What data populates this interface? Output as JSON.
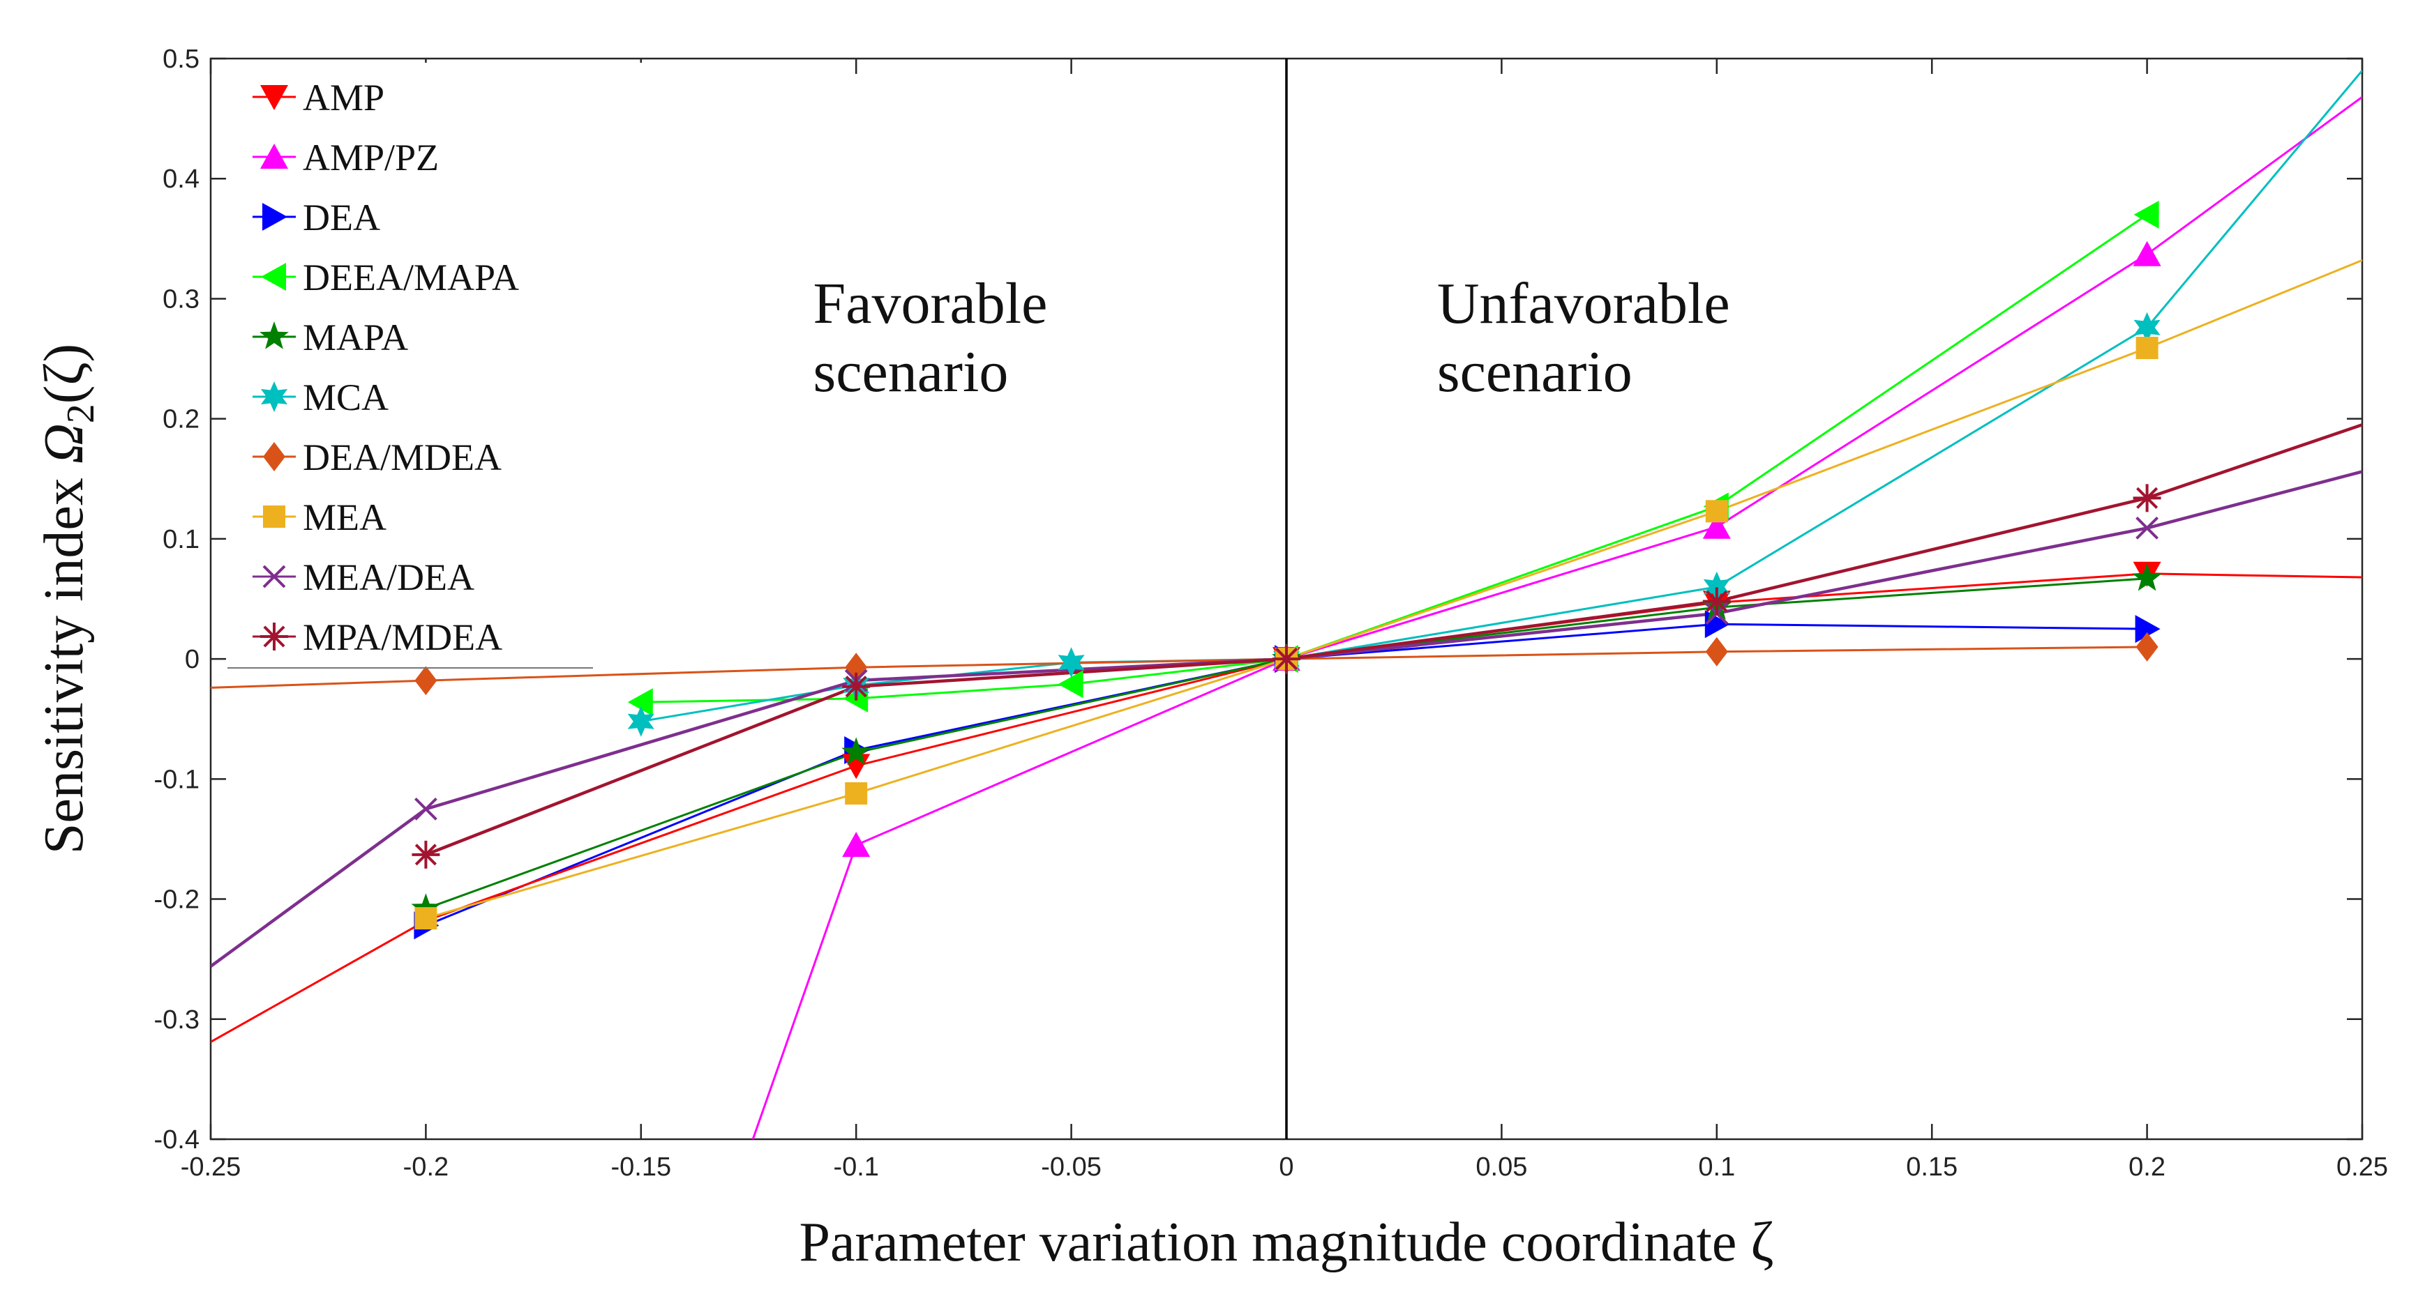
{
  "chart_data": {
    "type": "line",
    "title": "",
    "xlabel": "Parameter variation magnitude coordinate ζ",
    "ylabel_parts": [
      "Sensitivity index ",
      "Ω",
      "2",
      "(ζ)"
    ],
    "xlim": [
      -0.25,
      0.25
    ],
    "ylim": [
      -0.4,
      0.5
    ],
    "xticks": [
      -0.25,
      -0.2,
      -0.15,
      -0.1,
      -0.05,
      0,
      0.05,
      0.1,
      0.15,
      0.2,
      0.25
    ],
    "xtick_labels": [
      "-0.25",
      "-0.2",
      "-0.15",
      "-0.1",
      "-0.05",
      "0",
      "0.05",
      "0.1",
      "0.15",
      "0.2",
      "0.25"
    ],
    "yticks": [
      -0.4,
      -0.3,
      -0.2,
      -0.1,
      0,
      0.1,
      0.2,
      0.3,
      0.4,
      0.5
    ],
    "ytick_labels": [
      "-0.4",
      "-0.3",
      "-0.2",
      "-0.1",
      "0",
      "0.1",
      "0.2",
      "0.3",
      "0.4",
      "0.5"
    ],
    "grid": false,
    "legend_position": "top-left",
    "vertical_line_x": 0,
    "annotations": [
      {
        "lines": [
          "Favorable",
          "scenario"
        ],
        "x": -0.11,
        "y": 0.28
      },
      {
        "lines": [
          "Unfavorable",
          "scenario"
        ],
        "x": 0.035,
        "y": 0.28
      }
    ],
    "series": [
      {
        "name": "AMP",
        "color": "#ff0000",
        "marker": "triangle-down",
        "line": [
          [
            -0.25,
            -0.319
          ],
          [
            -0.2,
            -0.218
          ],
          [
            -0.1,
            -0.089
          ],
          [
            0,
            0
          ],
          [
            0.1,
            0.047
          ],
          [
            0.2,
            0.071
          ],
          [
            0.25,
            0.068
          ]
        ],
        "points": [
          [
            -0.1,
            -0.089
          ],
          [
            0,
            0
          ],
          [
            0.1,
            0.047
          ],
          [
            0.2,
            0.071
          ]
        ]
      },
      {
        "name": "AMP/PZ",
        "color": "#ff00ff",
        "marker": "triangle-up",
        "line": [
          [
            -0.124,
            -0.4
          ],
          [
            -0.1,
            -0.155
          ],
          [
            0,
            0
          ],
          [
            0.1,
            0.11
          ],
          [
            0.2,
            0.337
          ],
          [
            0.25,
            0.468
          ]
        ],
        "points": [
          [
            -0.1,
            -0.155
          ],
          [
            0,
            0
          ],
          [
            0.1,
            0.11
          ],
          [
            0.2,
            0.337
          ]
        ]
      },
      {
        "name": "DEA",
        "color": "#0000ff",
        "marker": "triangle-right",
        "line": [
          [
            -0.2,
            -0.222
          ],
          [
            -0.1,
            -0.076
          ],
          [
            0,
            0
          ],
          [
            0.1,
            0.029
          ],
          [
            0.2,
            0.025
          ]
        ],
        "points": [
          [
            -0.2,
            -0.222
          ],
          [
            -0.1,
            -0.076
          ],
          [
            0,
            0
          ],
          [
            0.1,
            0.029
          ],
          [
            0.2,
            0.025
          ]
        ]
      },
      {
        "name": "DEEA/MAPA",
        "color": "#00ff00",
        "marker": "triangle-left",
        "line": [
          [
            -0.15,
            -0.036
          ],
          [
            -0.1,
            -0.033
          ],
          [
            -0.05,
            -0.021
          ],
          [
            0,
            0
          ],
          [
            0.1,
            0.127
          ],
          [
            0.2,
            0.37
          ]
        ],
        "points": [
          [
            -0.15,
            -0.036
          ],
          [
            -0.1,
            -0.033
          ],
          [
            -0.05,
            -0.021
          ],
          [
            0,
            0
          ],
          [
            0.1,
            0.127
          ],
          [
            0.2,
            0.37
          ]
        ]
      },
      {
        "name": "MAPA",
        "color": "#008000",
        "marker": "star5",
        "line": [
          [
            -0.2,
            -0.208
          ],
          [
            -0.1,
            -0.078
          ],
          [
            0,
            0
          ],
          [
            0.1,
            0.043
          ],
          [
            0.2,
            0.067
          ]
        ],
        "points": [
          [
            -0.2,
            -0.208
          ],
          [
            -0.1,
            -0.078
          ],
          [
            0,
            0
          ],
          [
            0.1,
            0.043
          ],
          [
            0.2,
            0.067
          ]
        ]
      },
      {
        "name": "MCA",
        "color": "#00bfbf",
        "marker": "star6",
        "line": [
          [
            -0.15,
            -0.052
          ],
          [
            -0.1,
            -0.022
          ],
          [
            -0.05,
            -0.003
          ],
          [
            0,
            0
          ],
          [
            0.1,
            0.06
          ],
          [
            0.2,
            0.276
          ],
          [
            0.25,
            0.49
          ]
        ],
        "points": [
          [
            -0.15,
            -0.052
          ],
          [
            -0.1,
            -0.022
          ],
          [
            -0.05,
            -0.003
          ],
          [
            0,
            0
          ],
          [
            0.1,
            0.06
          ],
          [
            0.2,
            0.276
          ]
        ]
      },
      {
        "name": "DEA/MDEA",
        "color": "#d95319",
        "marker": "diamond",
        "line": [
          [
            -0.25,
            -0.024
          ],
          [
            -0.2,
            -0.018
          ],
          [
            -0.1,
            -0.007
          ],
          [
            0,
            0
          ],
          [
            0.1,
            0.006
          ],
          [
            0.2,
            0.01
          ]
        ],
        "points": [
          [
            -0.2,
            -0.018
          ],
          [
            -0.1,
            -0.007
          ],
          [
            0,
            0
          ],
          [
            0.1,
            0.006
          ],
          [
            0.2,
            0.01
          ]
        ]
      },
      {
        "name": "MEA",
        "color": "#edb120",
        "marker": "square",
        "line": [
          [
            -0.2,
            -0.216
          ],
          [
            -0.1,
            -0.112
          ],
          [
            0,
            0
          ],
          [
            0.1,
            0.123
          ],
          [
            0.2,
            0.259
          ],
          [
            0.25,
            0.332
          ]
        ],
        "points": [
          [
            -0.2,
            -0.216
          ],
          [
            -0.1,
            -0.112
          ],
          [
            0,
            0
          ],
          [
            0.1,
            0.123
          ],
          [
            0.2,
            0.259
          ]
        ]
      },
      {
        "name": "MEA/DEA",
        "color": "#7e2f8e",
        "marker": "x",
        "line": [
          [
            -0.25,
            -0.256
          ],
          [
            -0.2,
            -0.125
          ],
          [
            -0.1,
            -0.018
          ],
          [
            0,
            0
          ],
          [
            0.1,
            0.038
          ],
          [
            0.2,
            0.109
          ],
          [
            0.25,
            0.156
          ]
        ],
        "points": [
          [
            -0.2,
            -0.125
          ],
          [
            -0.1,
            -0.018
          ],
          [
            0,
            0
          ],
          [
            0.1,
            0.038
          ],
          [
            0.2,
            0.109
          ]
        ]
      },
      {
        "name": "MPA/MDEA",
        "color": "#a2142f",
        "marker": "asterisk",
        "line": [
          [
            -0.2,
            -0.163
          ],
          [
            -0.1,
            -0.023
          ],
          [
            0,
            0
          ],
          [
            0.1,
            0.048
          ],
          [
            0.2,
            0.134
          ],
          [
            0.25,
            0.195
          ]
        ],
        "points": [
          [
            -0.2,
            -0.163
          ],
          [
            -0.1,
            -0.023
          ],
          [
            0,
            0
          ],
          [
            0.1,
            0.048
          ],
          [
            0.2,
            0.134
          ]
        ]
      }
    ]
  }
}
